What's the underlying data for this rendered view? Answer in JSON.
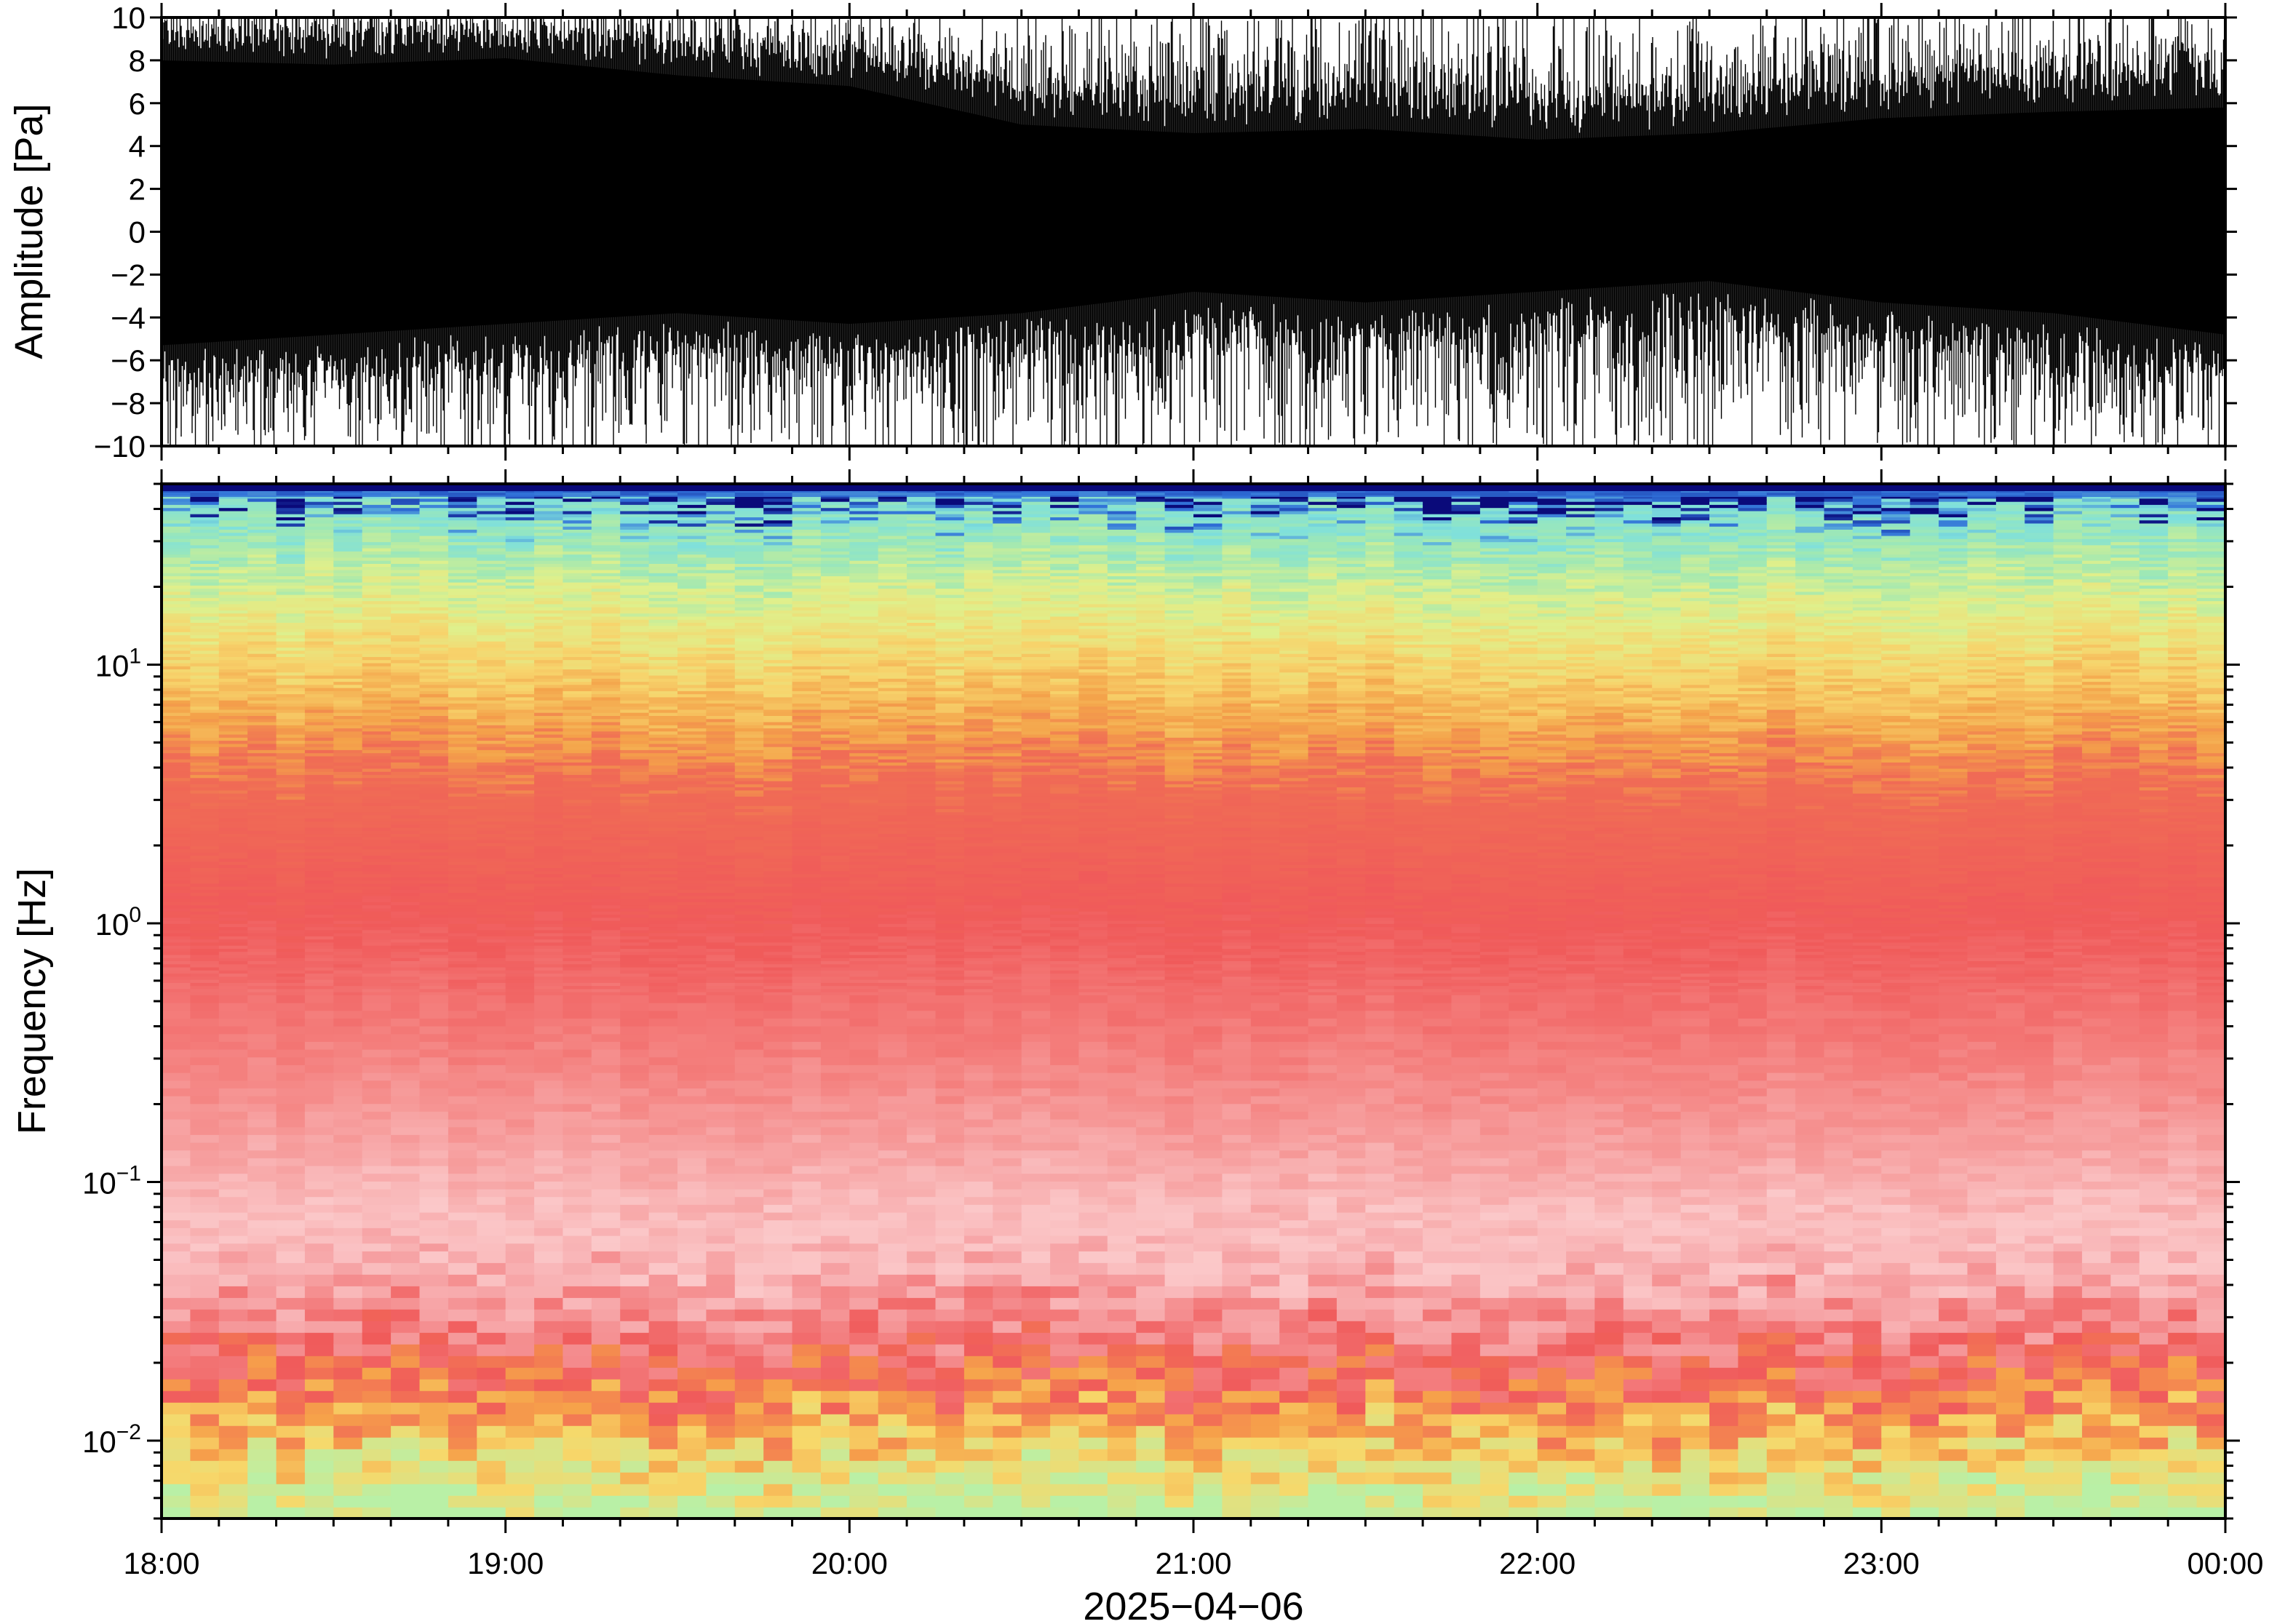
{
  "chart_data": [
    {
      "type": "line",
      "panel": "waveform",
      "ylabel": "Amplitude [Pa]",
      "ylim": [
        -10,
        10
      ],
      "yticks": [
        10,
        8,
        6,
        4,
        2,
        0,
        -2,
        -4,
        -6,
        -8,
        -10
      ],
      "ytick_labels": [
        "10",
        "8",
        "6",
        "4",
        "2",
        "0",
        "−2",
        "−4",
        "−6",
        "−8",
        "−10"
      ],
      "xlim": [
        "18:00",
        "00:00"
      ],
      "envelope": {
        "hours": [
          18.0,
          18.5,
          19.0,
          19.5,
          20.0,
          20.5,
          21.0,
          21.5,
          22.0,
          22.5,
          23.0,
          23.5,
          24.0
        ],
        "upper": [
          9.2,
          9.0,
          9.3,
          8.5,
          8.0,
          6.2,
          5.8,
          6.0,
          5.5,
          5.8,
          6.5,
          6.8,
          7.0
        ],
        "lower": [
          -6.5,
          -6.0,
          -5.5,
          -5.0,
          -5.5,
          -5.0,
          -4.0,
          -4.5,
          -4.0,
          -3.5,
          -4.5,
          -5.0,
          -6.0
        ]
      },
      "trace_color": "#000000"
    },
    {
      "type": "heatmap",
      "panel": "spectrogram",
      "ylabel": "Frequency [Hz]",
      "yscale": "log",
      "ylim": [
        0.005,
        50
      ],
      "yticks": [
        {
          "base": "10",
          "exp": "1"
        },
        {
          "base": "10",
          "exp": "0"
        },
        {
          "base": "10",
          "exp": "−1"
        },
        {
          "base": "10",
          "exp": "−2"
        }
      ],
      "ytick_values": [
        10,
        1,
        0.1,
        0.01
      ],
      "xlabel": "2025−04−06",
      "xlim": [
        "18:00",
        "00:00"
      ],
      "xticks": [
        "18:00",
        "19:00",
        "20:00",
        "21:00",
        "22:00",
        "23:00",
        "00:00"
      ],
      "colormap_stops": [
        {
          "log_f": -2.3,
          "color": "#b9f0a6"
        },
        {
          "log_f": -2.05,
          "color": "#f7d86a"
        },
        {
          "log_f": -1.9,
          "color": "#f6a24a"
        },
        {
          "log_f": -1.72,
          "color": "#f05a5a"
        },
        {
          "log_f": -1.45,
          "color": "#f6a0a2"
        },
        {
          "log_f": -1.2,
          "color": "#fbc8c9"
        },
        {
          "log_f": -0.9,
          "color": "#f7a5a5"
        },
        {
          "log_f": -0.5,
          "color": "#f47f7d"
        },
        {
          "log_f": 0.0,
          "color": "#f05a5a"
        },
        {
          "log_f": 0.55,
          "color": "#f06c55"
        },
        {
          "log_f": 0.75,
          "color": "#f4a24a"
        },
        {
          "log_f": 1.0,
          "color": "#f7d46c"
        },
        {
          "log_f": 1.25,
          "color": "#dff08c"
        },
        {
          "log_f": 1.45,
          "color": "#9fe8b4"
        },
        {
          "log_f": 1.6,
          "color": "#7fe0dc"
        },
        {
          "log_f": 1.66,
          "color": "#2f6fd8"
        },
        {
          "log_f": 1.7,
          "color": "#0a0a7a"
        }
      ]
    }
  ]
}
